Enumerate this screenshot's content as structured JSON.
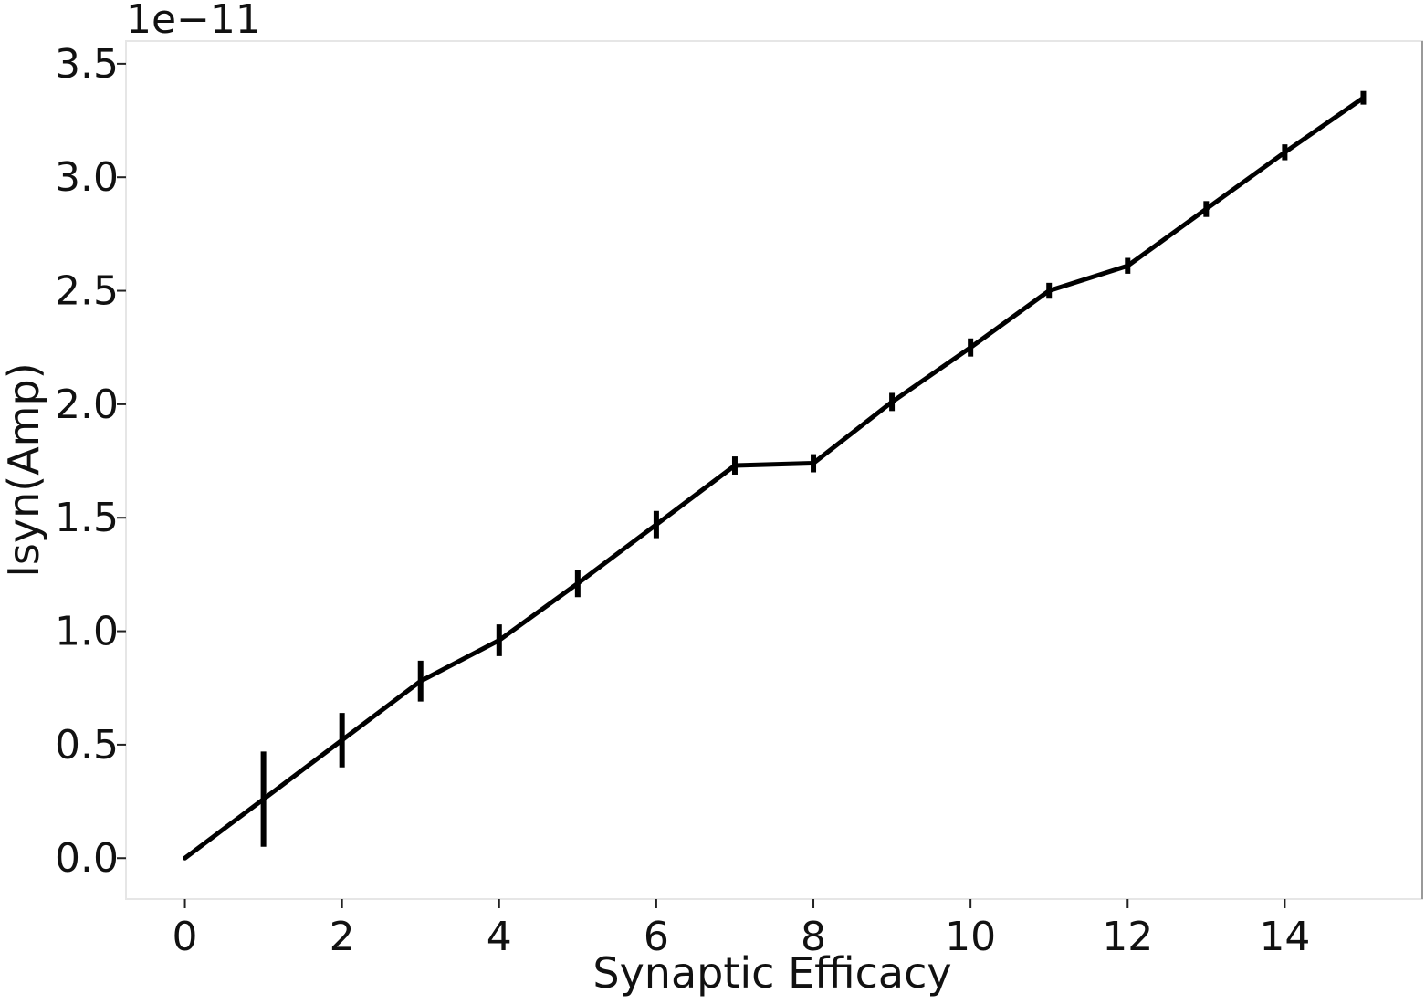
{
  "chart_data": {
    "type": "line",
    "title": "",
    "xlabel": "Synaptic Efficacy",
    "ylabel": "Isyn(Amp)",
    "y_offset_label": "1e−11",
    "xlim": [
      -0.75,
      15.75
    ],
    "ylim": [
      -0.18,
      3.6
    ],
    "grid": false,
    "x_ticks": [
      0,
      2,
      4,
      6,
      8,
      10,
      12,
      14
    ],
    "x_tick_labels": [
      "0",
      "2",
      "4",
      "6",
      "8",
      "10",
      "12",
      "14"
    ],
    "y_ticks": [
      0.0,
      0.5,
      1.0,
      1.5,
      2.0,
      2.5,
      3.0,
      3.5
    ],
    "y_tick_labels": [
      "0.0",
      "0.5",
      "1.0",
      "1.5",
      "2.0",
      "2.5",
      "3.0",
      "3.5"
    ],
    "series": [
      {
        "color": "#000000",
        "x": [
          0,
          1,
          2,
          3,
          4,
          5,
          6,
          7,
          8,
          9,
          10,
          11,
          12,
          13,
          14,
          15
        ],
        "y": [
          0.0,
          0.26,
          0.52,
          0.78,
          0.96,
          1.21,
          1.47,
          1.73,
          1.74,
          2.01,
          2.25,
          2.5,
          2.61,
          2.86,
          3.11,
          3.35
        ],
        "yerr": [
          0.0,
          0.21,
          0.12,
          0.09,
          0.07,
          0.06,
          0.06,
          0.04,
          0.04,
          0.04,
          0.04,
          0.035,
          0.035,
          0.035,
          0.035,
          0.03
        ]
      }
    ]
  }
}
